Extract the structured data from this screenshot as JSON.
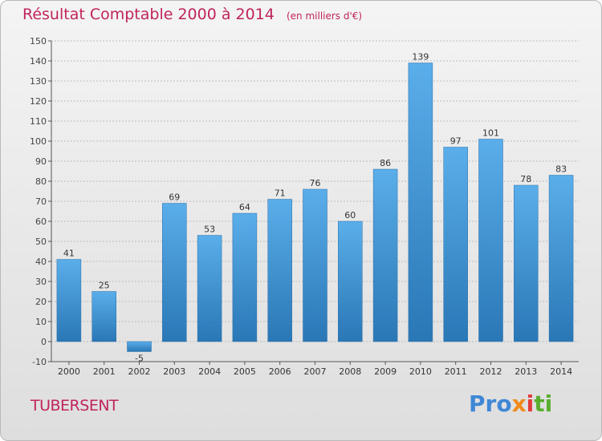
{
  "header": {
    "title": "Résultat Comptable 2000 à 2014",
    "unit": "(en milliers d'€)"
  },
  "footer": {
    "commune": "TUBERSENT",
    "logo_text": "Proxiti",
    "logo_parts": [
      {
        "text": "Pro",
        "color": "#3f87d6"
      },
      {
        "text": "x",
        "color": "#f08a1c"
      },
      {
        "text": "i",
        "color": "#e23a3a"
      },
      {
        "text": "ti",
        "color": "#5aae2e"
      }
    ]
  },
  "colors": {
    "title": "#c0245c",
    "bar_light": "#5aaeea",
    "bar_dark": "#2a77b6",
    "grid": "#bdbdbd"
  },
  "chart_data": {
    "type": "bar",
    "title": "Résultat Comptable 2000 à 2014",
    "subtitle": "(en milliers d'€)",
    "categories": [
      "2000",
      "2001",
      "2002",
      "2003",
      "2004",
      "2005",
      "2006",
      "2007",
      "2008",
      "2009",
      "2010",
      "2011",
      "2012",
      "2013",
      "2014"
    ],
    "values": [
      41,
      25,
      -5,
      69,
      53,
      64,
      71,
      76,
      60,
      86,
      139,
      97,
      101,
      78,
      83
    ],
    "ylim": [
      -10,
      150
    ],
    "ytick_step": 10,
    "grid": true,
    "xlabel": "",
    "ylabel": ""
  }
}
